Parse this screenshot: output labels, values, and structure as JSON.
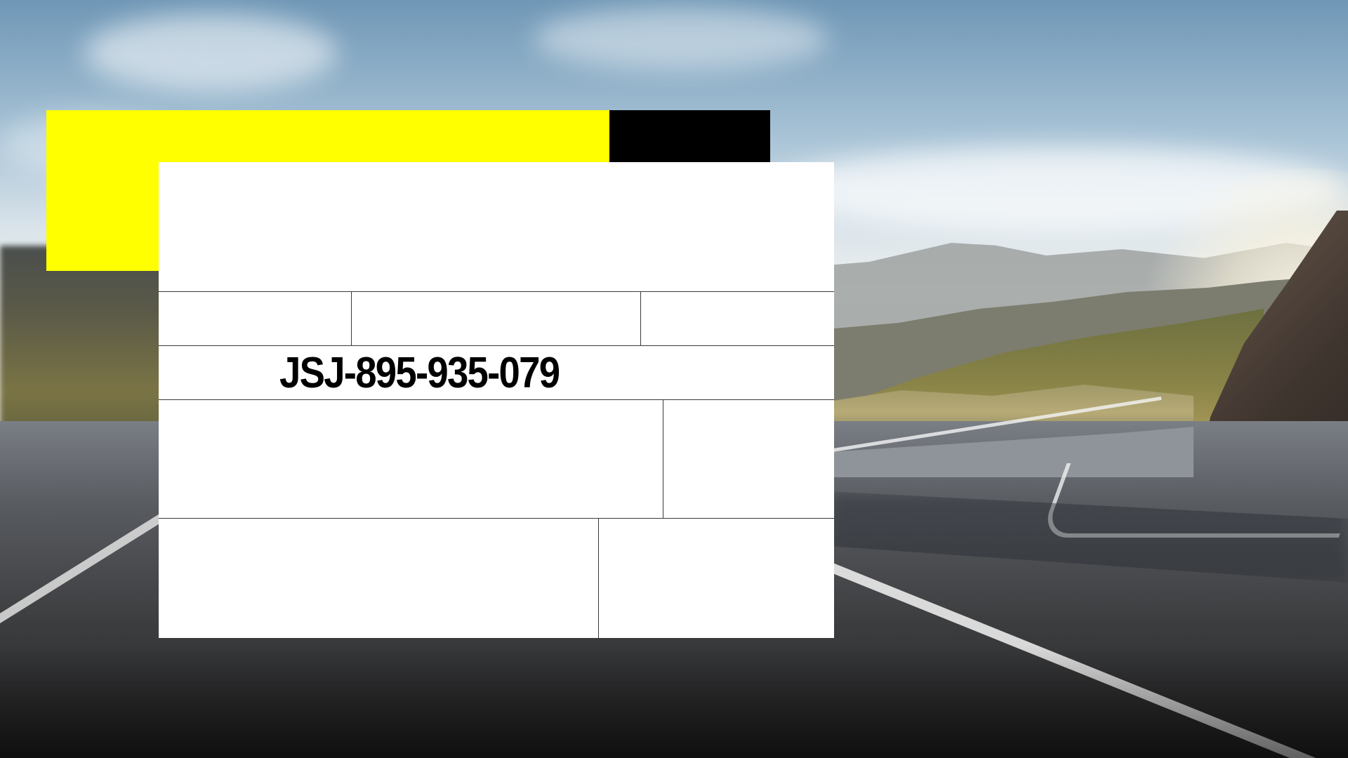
{
  "slide": {
    "record_id": "JSJ-895-935-079"
  },
  "colors": {
    "accent_yellow": "#ffff00",
    "accent_black": "#000000",
    "card_background": "#ffffff",
    "card_grid_lines": "#3a3a3a"
  },
  "background": {
    "icon": "mountain-road-photo"
  }
}
